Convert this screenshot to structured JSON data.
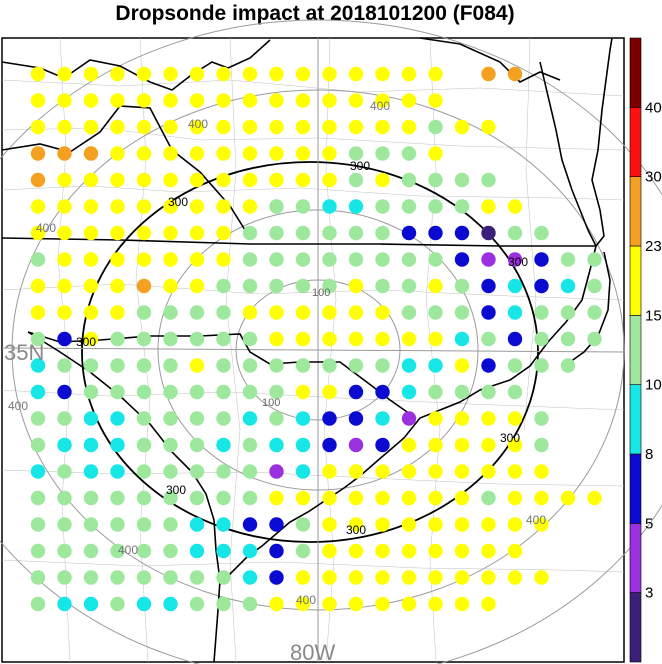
{
  "title": "Dropsonde impact at 2018101200 (F084)",
  "map_labels": {
    "lat_label": "35N",
    "lon_label": "80W"
  },
  "range_ring_labels": [
    "100",
    "100",
    "300",
    "300",
    "300",
    "300",
    "300",
    "300",
    "300",
    "400",
    "400",
    "400",
    "400",
    "400",
    "400",
    "400"
  ],
  "colorbar": {
    "labels": [
      "3",
      "5",
      "8",
      "10",
      "15",
      "23",
      "30",
      "40"
    ],
    "colors": [
      "#3b1f78",
      "#9b30e0",
      "#0a0ad0",
      "#17e6e6",
      "#9de89d",
      "#ffff00",
      "#f4a020",
      "#ff1010",
      "#7a0000"
    ]
  },
  "chart_data": {
    "type": "scatter",
    "description_of_values": "categorical impact level per grid point, indexed into colorbar.colors",
    "grid": {
      "rows": [
        "r00",
        "r01",
        "r02",
        "r03",
        "r04",
        "r05",
        "r06",
        "r07",
        "r08",
        "r09",
        "r10",
        "r11",
        "r12",
        "r13",
        "r14",
        "r15",
        "r16",
        "r17",
        "r18",
        "r19",
        "r20"
      ],
      "cols": [
        "c00",
        "c01",
        "c02",
        "c03",
        "c04",
        "c05",
        "c06",
        "c07",
        "c08",
        "c09",
        "c10",
        "c11",
        "c12",
        "c13",
        "c14",
        "c15",
        "c16",
        "c17",
        "c18",
        "c19",
        "c20"
      ]
    },
    "levels": [
      "5555555555555555-66-",
      "5555555555555555-----",
      "555555555555555455---",
      "6665555555554445-----",
      "655555555555454444---",
      "5555555554433444455--",
      "55555555444444222044--",
      "4555555544444444211244",
      "5555655444445445423234",
      "5555444455555544423444",
      "4254444445555555342444",
      "344444544444443352444-",
      "3244444444552234444----",
      "44334444343223155554----",
      "43334443433212555554----",
      "34334444413555555555----",
      "4444444445555555545555--",
      "44444433224555555555----",
      "4444443332455555555----",
      "44444444325555555555---",
      "433433444555555555-----"
    ]
  }
}
